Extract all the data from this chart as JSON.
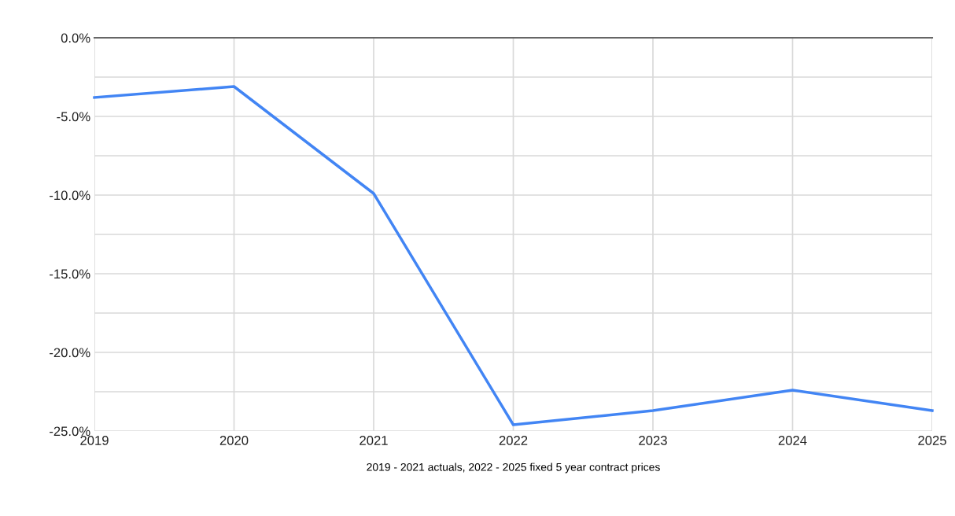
{
  "chart_data": {
    "type": "line",
    "xlabel": "2019 - 2021 actuals, 2022 - 2025 fixed 5 year contract prices",
    "x": [
      2019,
      2020,
      2021,
      2022,
      2023,
      2024,
      2025
    ],
    "series": [
      {
        "color": "#4285f4",
        "values": [
          -3.8,
          -3.1,
          -9.9,
          -24.6,
          -23.7,
          -22.4,
          -23.7
        ]
      }
    ],
    "xlim": [
      2019,
      2025
    ],
    "xticks": [
      2019,
      2020,
      2021,
      2022,
      2023,
      2024,
      2025
    ],
    "ylim": [
      -25,
      0
    ],
    "yticks": [
      {
        "value": -25,
        "label": "-25.0%"
      },
      {
        "value": -22.5,
        "label": null
      },
      {
        "value": -20,
        "label": "-20.0%"
      },
      {
        "value": -17.5,
        "label": null
      },
      {
        "value": -15,
        "label": "-15.0%"
      },
      {
        "value": -12.5,
        "label": null
      },
      {
        "value": -10,
        "label": "-10.0%"
      },
      {
        "value": -7.5,
        "label": null
      },
      {
        "value": -5,
        "label": "-5.0%"
      },
      {
        "value": -2.5,
        "label": null
      },
      {
        "value": 0,
        "label": "0.0%"
      }
    ],
    "grid": true,
    "marker": "none",
    "line_style": "solid",
    "legend": false
  }
}
